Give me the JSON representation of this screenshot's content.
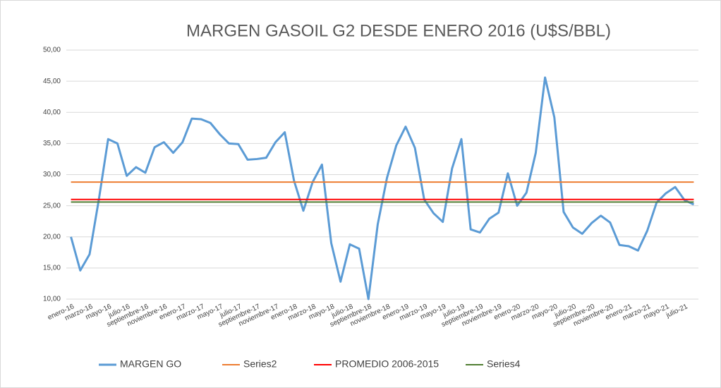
{
  "chart_data": {
    "type": "line",
    "title": "MARGEN GASOIL G2 DESDE ENERO 2016 (U$S/BBL)",
    "categories": [
      "enero-16",
      null,
      "marzo-16",
      null,
      "mayo-16",
      null,
      "julio-16",
      null,
      "septiembre-16",
      null,
      "noviembre-16",
      null,
      "enero-17",
      null,
      "marzo-17",
      null,
      "mayo-17",
      null,
      "julio-17",
      null,
      "septiembre-17",
      null,
      "noviembre-17",
      null,
      "enero-18",
      null,
      "marzo-18",
      null,
      "mayo-18",
      null,
      "julio-18",
      null,
      "septiembre-18",
      null,
      "noviembre-18",
      null,
      "enero-19",
      null,
      "marzo-19",
      null,
      "mayo-19",
      null,
      "julio-19",
      null,
      "septiembre-19",
      null,
      "noviembre-19",
      null,
      "enero-20",
      null,
      "marzo-20",
      null,
      "mayo-20",
      null,
      "julio-20",
      null,
      "septiembre-20",
      null,
      "noviembre-20",
      null,
      "enero-21",
      null,
      "marzo-21",
      null,
      "mayo-21",
      null,
      "julio-21",
      null
    ],
    "series": [
      {
        "name": "MARGEN GO",
        "color": "#5b9bd5",
        "values": [
          20.0,
          14.6,
          17.2,
          26.0,
          35.7,
          35.0,
          29.8,
          31.2,
          30.3,
          34.4,
          35.2,
          33.5,
          35.2,
          39.0,
          38.9,
          38.3,
          36.5,
          35.0,
          34.9,
          32.4,
          32.5,
          32.7,
          35.2,
          36.8,
          29.0,
          24.2,
          28.8,
          31.6,
          19.0,
          12.8,
          18.8,
          18.1,
          10.0,
          22.0,
          29.5,
          34.7,
          37.7,
          34.3,
          26.0,
          23.8,
          22.4,
          31.0,
          35.7,
          21.2,
          20.7,
          22.9,
          23.9,
          30.2,
          25.0,
          27.1,
          33.5,
          45.6,
          39.2,
          24.0,
          21.5,
          20.5,
          22.2,
          23.4,
          22.3,
          18.7,
          18.5,
          17.8,
          21.0,
          25.5,
          27.0,
          28.0,
          25.9,
          25.2
        ]
      },
      {
        "name": "Series2",
        "color": "#ed7d31",
        "values": [
          28.8,
          28.8,
          28.8,
          28.8,
          28.8,
          28.8,
          28.8,
          28.8,
          28.8,
          28.8,
          28.8,
          28.8,
          28.8,
          28.8,
          28.8,
          28.8,
          28.8,
          28.8,
          28.8,
          28.8,
          28.8,
          28.8,
          28.8,
          28.8,
          28.8,
          28.8,
          28.8,
          28.8,
          28.8,
          28.8,
          28.8,
          28.8,
          28.8,
          28.8,
          28.8,
          28.8,
          28.8,
          28.8,
          28.8,
          28.8,
          28.8,
          28.8,
          28.8,
          28.8,
          28.8,
          28.8,
          28.8,
          28.8,
          28.8,
          28.8,
          28.8,
          28.8,
          28.8,
          28.8,
          28.8,
          28.8,
          28.8,
          28.8,
          28.8,
          28.8,
          28.8,
          28.8,
          28.8,
          28.8,
          28.8,
          28.8,
          28.8,
          28.8
        ]
      },
      {
        "name": "PROMEDIO 2006-2015",
        "color": "#ff0000",
        "values": [
          26.0,
          26.0,
          26.0,
          26.0,
          26.0,
          26.0,
          26.0,
          26.0,
          26.0,
          26.0,
          26.0,
          26.0,
          26.0,
          26.0,
          26.0,
          26.0,
          26.0,
          26.0,
          26.0,
          26.0,
          26.0,
          26.0,
          26.0,
          26.0,
          26.0,
          26.0,
          26.0,
          26.0,
          26.0,
          26.0,
          26.0,
          26.0,
          26.0,
          26.0,
          26.0,
          26.0,
          26.0,
          26.0,
          26.0,
          26.0,
          26.0,
          26.0,
          26.0,
          26.0,
          26.0,
          26.0,
          26.0,
          26.0,
          26.0,
          26.0,
          26.0,
          26.0,
          26.0,
          26.0,
          26.0,
          26.0,
          26.0,
          26.0,
          26.0,
          26.0,
          26.0,
          26.0,
          26.0,
          26.0,
          26.0,
          26.0,
          26.0,
          26.0
        ]
      },
      {
        "name": "Series4",
        "color": "#507e32",
        "values": [
          25.6,
          25.6,
          25.6,
          25.6,
          25.6,
          25.6,
          25.6,
          25.6,
          25.6,
          25.6,
          25.6,
          25.6,
          25.6,
          25.6,
          25.6,
          25.6,
          25.6,
          25.6,
          25.6,
          25.6,
          25.6,
          25.6,
          25.6,
          25.6,
          25.6,
          25.6,
          25.6,
          25.6,
          25.6,
          25.6,
          25.6,
          25.6,
          25.6,
          25.6,
          25.6,
          25.6,
          25.6,
          25.6,
          25.6,
          25.6,
          25.6,
          25.6,
          25.6,
          25.6,
          25.6,
          25.6,
          25.6,
          25.6,
          25.6,
          25.6,
          25.6,
          25.6,
          25.6,
          25.6,
          25.6,
          25.6,
          25.6,
          25.6,
          25.6,
          25.6,
          25.6,
          25.6,
          25.6,
          25.6,
          25.6,
          25.6,
          25.6,
          25.6
        ]
      }
    ],
    "ylim": [
      10,
      50
    ],
    "yticks": [
      {
        "value": 10,
        "label": "10,00"
      },
      {
        "value": 15,
        "label": "15,00"
      },
      {
        "value": 20,
        "label": "20,00"
      },
      {
        "value": 25,
        "label": "25,00"
      },
      {
        "value": 30,
        "label": "30,00"
      },
      {
        "value": 35,
        "label": "35,00"
      },
      {
        "value": 40,
        "label": "40,00"
      },
      {
        "value": 45,
        "label": "45,00"
      },
      {
        "value": 50,
        "label": "50,00"
      }
    ],
    "grid": true,
    "legend": "bottom"
  }
}
